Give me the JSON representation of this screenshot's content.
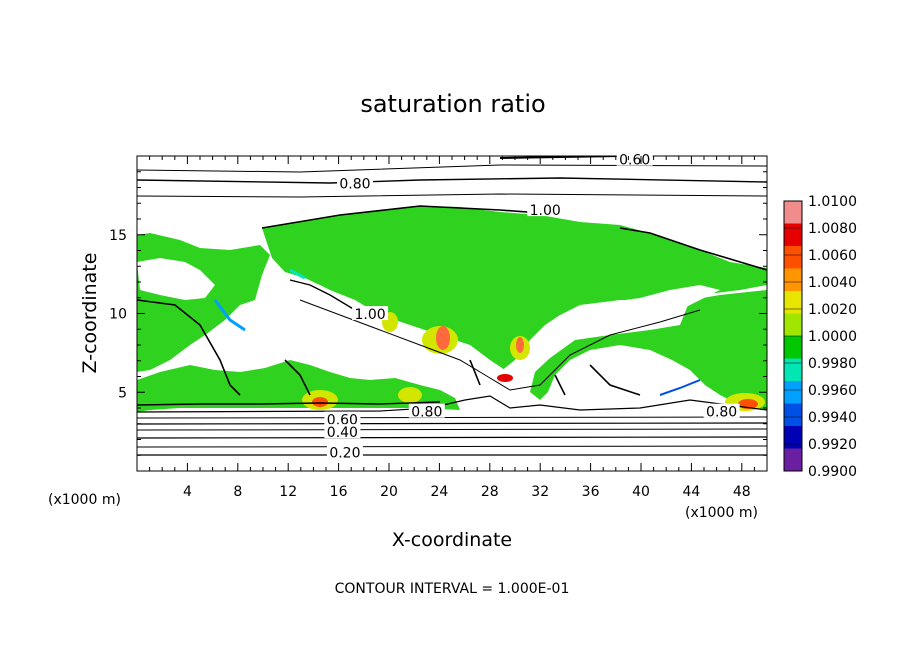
{
  "chart_data": {
    "type": "heatmap",
    "title": "saturation ratio",
    "xlabel": "X-coordinate",
    "ylabel": "Z-coordinate",
    "x_unit": "(x1000 m)",
    "z_unit": "(x1000 m)",
    "xlim": [
      0,
      50
    ],
    "ylim": [
      0,
      20
    ],
    "x_ticks": [
      "4",
      "8",
      "12",
      "16",
      "20",
      "24",
      "28",
      "32",
      "36",
      "40",
      "44",
      "48"
    ],
    "y_ticks": [
      "5",
      "10",
      "15"
    ],
    "contour_interval_text": "CONTOUR INTERVAL = 1.000E-01",
    "contour_labels": [
      {
        "text": "0.60",
        "x": 39.5,
        "z": 19.7
      },
      {
        "text": "0.80",
        "x": 17.3,
        "z": 18.2
      },
      {
        "text": "1.00",
        "x": 32.4,
        "z": 16.5
      },
      {
        "text": "1.00",
        "x": 18.5,
        "z": 9.9
      },
      {
        "text": "0.80",
        "x": 23.0,
        "z": 3.7
      },
      {
        "text": "0.60",
        "x": 16.3,
        "z": 3.2
      },
      {
        "text": "0.40",
        "x": 16.3,
        "z": 2.4
      },
      {
        "text": "0.20",
        "x": 16.5,
        "z": 1.1
      },
      {
        "text": "0.80",
        "x": 46.4,
        "z": 3.7
      }
    ],
    "colorbar": {
      "labels": [
        "1.0100",
        "1.0080",
        "1.0060",
        "1.0040",
        "1.0020",
        "1.0000",
        "0.9980",
        "0.9960",
        "0.9940",
        "0.9920",
        "0.9900"
      ],
      "colors": [
        "#f08c8c",
        "#e60000",
        "#ff5000",
        "#ff9600",
        "#e6e600",
        "#a0e600",
        "#00c800",
        "#00e6b4",
        "#00a0ff",
        "#0050e6",
        "#0000b4",
        "#6a1fa0"
      ]
    },
    "grid": false
  }
}
